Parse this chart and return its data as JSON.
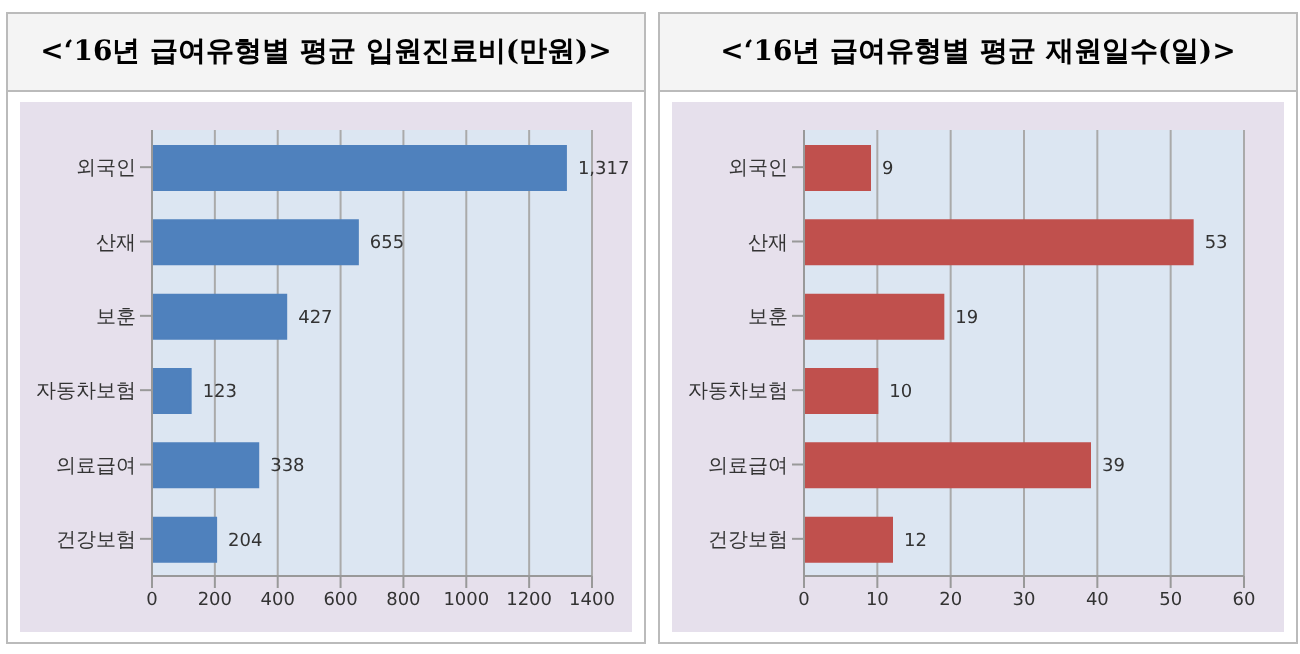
{
  "chart_data": [
    {
      "type": "bar",
      "orientation": "horizontal",
      "title": "<‘16년 급여유형별 평균 입원진료비(만원)>",
      "categories": [
        "외국인",
        "산재",
        "보훈",
        "자동차보험",
        "의료급여",
        "건강보험"
      ],
      "values": [
        1317,
        655,
        427,
        123,
        338,
        204
      ],
      "color": "#4f81bd",
      "value_labels": [
        "1,317",
        "655",
        "427",
        "123",
        "338",
        "204"
      ],
      "xlim": [
        0,
        1400
      ],
      "xticks": [
        0,
        200,
        400,
        600,
        800,
        1000,
        1200,
        1400
      ],
      "grid": "x"
    },
    {
      "type": "bar",
      "orientation": "horizontal",
      "title": "<‘16년 급여유형별 평균 재원일수(일)>",
      "categories": [
        "외국인",
        "산재",
        "보훈",
        "자동차보험",
        "의료급여",
        "건강보험"
      ],
      "values": [
        9,
        53,
        19,
        10,
        39,
        12
      ],
      "color": "#c0504d",
      "data_labels": true,
      "xlim": [
        0,
        60
      ],
      "xticks": [
        0,
        10,
        20,
        30,
        40,
        50,
        60
      ],
      "grid": "x"
    }
  ]
}
